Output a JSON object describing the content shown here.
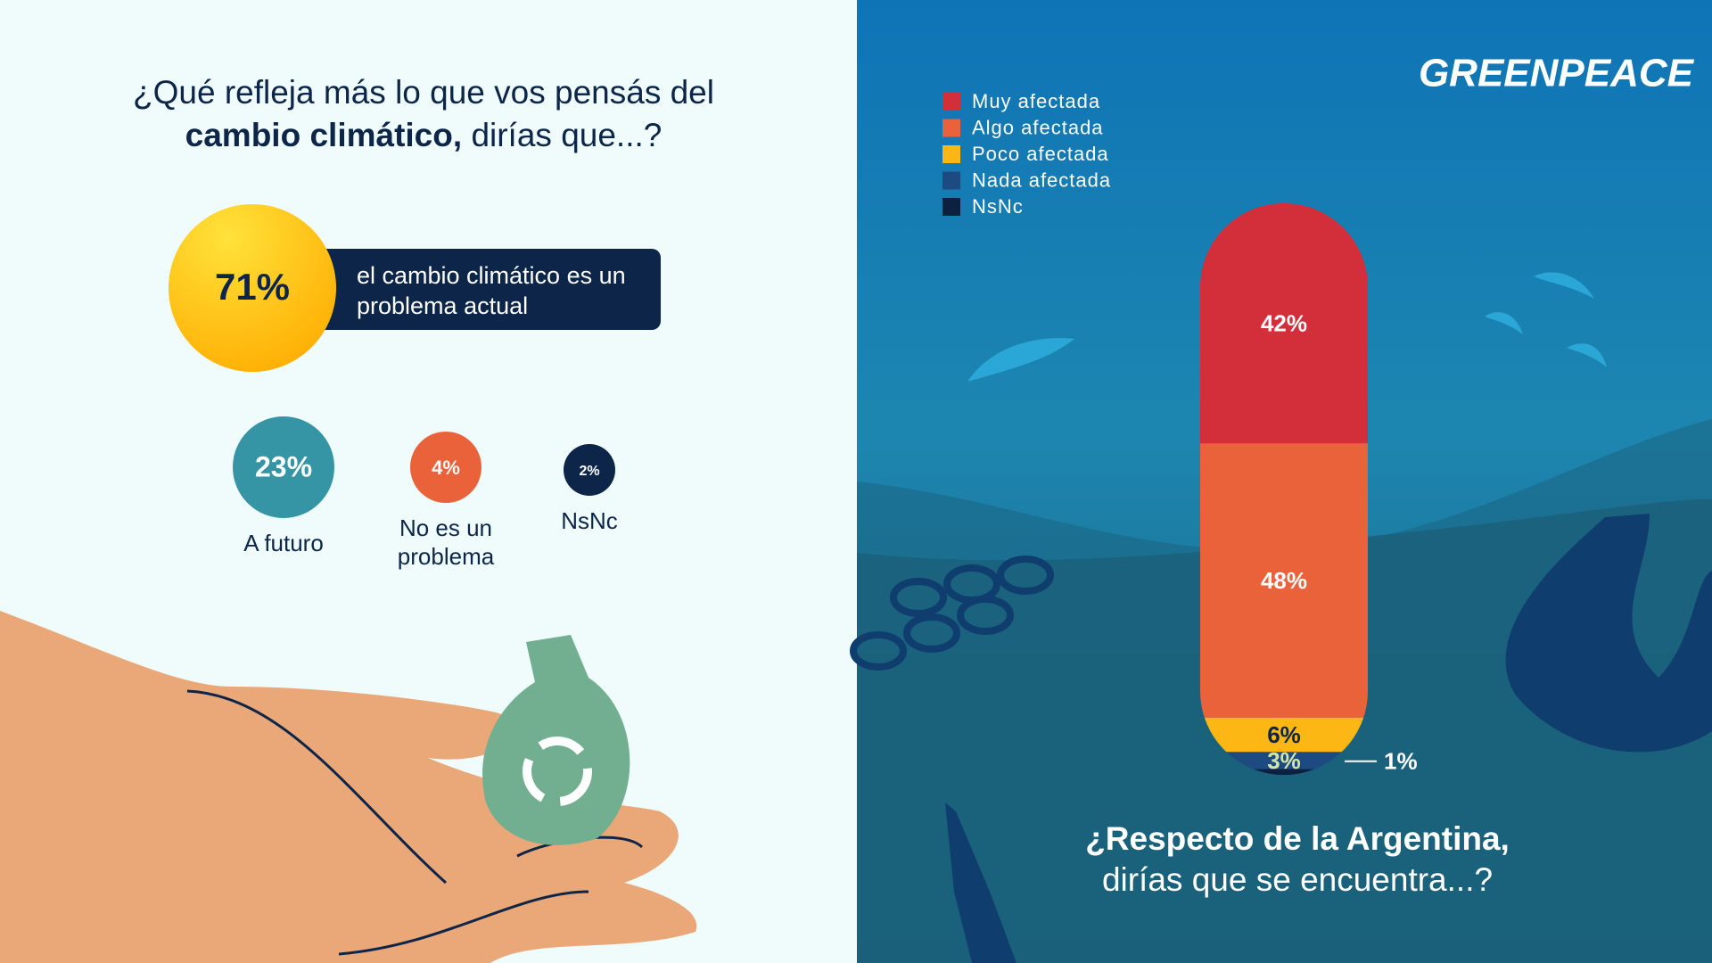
{
  "logo": "GREENPEACE",
  "chart_data": [
    {
      "type": "bubble",
      "title": [
        "¿Qué refleja más lo que vos pensás del",
        "cambio climático,",
        "dirías que...?"
      ],
      "categories": [
        "el cambio climático es un problema actual",
        "A futuro",
        "No es un problema",
        "NsNc"
      ],
      "values": [
        71,
        23,
        4,
        2
      ],
      "value_labels": [
        "71%",
        "23%",
        "4%",
        "2%"
      ],
      "colors": [
        "#fdb714",
        "#3595a4",
        "#e9623a",
        "#0c2548"
      ]
    },
    {
      "type": "stacked-bar",
      "title": [
        "¿Respecto de la Argentina,",
        "dirías que se encuentra...?"
      ],
      "series": [
        {
          "name": "Muy afectada",
          "color": "#d22f3a",
          "values": [
            42
          ],
          "value_labels": [
            "42%"
          ]
        },
        {
          "name": "Algo afectada",
          "color": "#e9623a",
          "values": [
            48
          ],
          "value_labels": [
            "48%"
          ]
        },
        {
          "name": "Poco afectada",
          "color": "#fdb714",
          "values": [
            6
          ],
          "value_labels": [
            "6%"
          ]
        },
        {
          "name": "Nada afectada",
          "color": "#1d4a80",
          "values": [
            3
          ],
          "value_labels": [
            "3%"
          ]
        },
        {
          "name": "NsNc",
          "color": "#0c2040",
          "values": [
            1
          ],
          "value_labels": [
            "1%"
          ]
        }
      ],
      "legend": "top-left"
    }
  ]
}
